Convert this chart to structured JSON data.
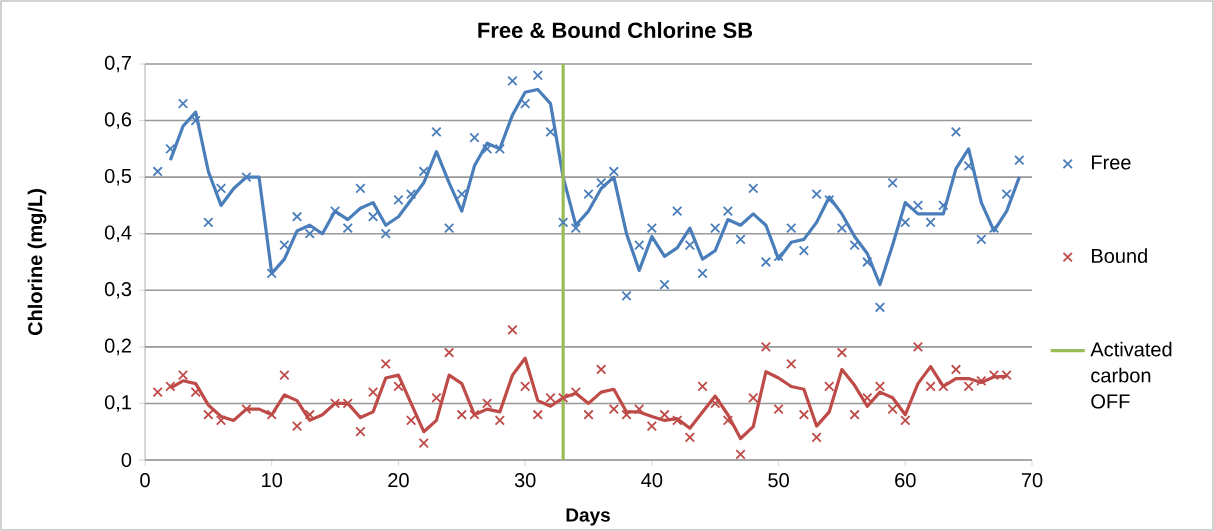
{
  "chart_data": {
    "type": "scatter",
    "title": "Free & Bound Chlorine SB",
    "xlabel": "Days",
    "ylabel": "Chlorine (mg/L)",
    "xlim": [
      0,
      70
    ],
    "ylim": [
      0,
      0.7
    ],
    "xticks": [
      0,
      10,
      20,
      30,
      40,
      50,
      60,
      70
    ],
    "yticks": [
      0,
      {
        "value": 0.1,
        "label": "0,1"
      },
      {
        "value": 0.2,
        "label": "0,2"
      },
      {
        "value": 0.3,
        "label": "0,3"
      },
      {
        "value": 0.4,
        "label": "0,4"
      },
      {
        "value": 0.5,
        "label": "0,5"
      },
      {
        "value": 0.6,
        "label": "0,6"
      },
      {
        "value": 0.7,
        "label": "0,7"
      }
    ],
    "grid": "y",
    "legend": "right",
    "series": [
      {
        "name": "Free",
        "type": "scatter",
        "marker": "cross",
        "color": "#4a7ebb",
        "x": [
          1,
          2,
          3,
          4,
          5,
          6,
          8,
          10,
          11,
          12,
          13,
          15,
          16,
          17,
          18,
          19,
          20,
          21,
          22,
          23,
          24,
          25,
          26,
          27,
          28,
          29,
          30,
          31,
          32,
          33,
          34,
          35,
          36,
          37,
          38,
          39,
          40,
          41,
          42,
          43,
          44,
          45,
          46,
          47,
          48,
          49,
          50,
          51,
          52,
          53,
          54,
          55,
          56,
          57,
          58,
          59,
          60,
          61,
          62,
          63,
          64,
          65,
          66,
          67,
          68,
          69
        ],
        "values": [
          0.51,
          0.55,
          0.63,
          0.6,
          0.42,
          0.48,
          0.5,
          0.33,
          0.38,
          0.43,
          0.4,
          0.44,
          0.41,
          0.48,
          0.43,
          0.4,
          0.46,
          0.47,
          0.51,
          0.58,
          0.41,
          0.47,
          0.57,
          0.55,
          0.55,
          0.67,
          0.63,
          0.68,
          0.58,
          0.42,
          0.41,
          0.47,
          0.49,
          0.51,
          0.29,
          0.38,
          0.41,
          0.31,
          0.44,
          0.38,
          0.33,
          0.41,
          0.44,
          0.39,
          0.48,
          0.35,
          0.36,
          0.41,
          0.37,
          0.47,
          0.46,
          0.41,
          0.38,
          0.35,
          0.27,
          0.49,
          0.42,
          0.45,
          0.42,
          0.45,
          0.58,
          0.52,
          0.39,
          0.41,
          0.47,
          0.53
        ]
      },
      {
        "name": "Bound",
        "type": "scatter",
        "marker": "cross",
        "color": "#be4b48",
        "x": [
          1,
          2,
          3,
          4,
          5,
          6,
          8,
          10,
          11,
          12,
          13,
          15,
          16,
          17,
          18,
          19,
          20,
          21,
          22,
          23,
          24,
          25,
          26,
          27,
          28,
          29,
          30,
          31,
          32,
          33,
          34,
          35,
          36,
          37,
          38,
          39,
          40,
          41,
          42,
          43,
          44,
          45,
          46,
          47,
          48,
          49,
          50,
          51,
          52,
          53,
          54,
          55,
          56,
          57,
          58,
          59,
          60,
          61,
          62,
          63,
          64,
          65,
          66,
          67,
          68
        ],
        "values": [
          0.12,
          0.13,
          0.15,
          0.12,
          0.08,
          0.07,
          0.09,
          0.08,
          0.15,
          0.06,
          0.08,
          0.1,
          0.1,
          0.05,
          0.12,
          0.17,
          0.13,
          0.07,
          0.03,
          0.11,
          0.19,
          0.08,
          0.08,
          0.1,
          0.07,
          0.23,
          0.13,
          0.08,
          0.11,
          0.11,
          0.12,
          0.08,
          0.16,
          0.09,
          0.08,
          0.09,
          0.06,
          0.08,
          0.07,
          0.04,
          0.13,
          0.1,
          0.07,
          0.01,
          0.11,
          0.2,
          0.09,
          0.17,
          0.08,
          0.04,
          0.13,
          0.19,
          0.08,
          0.11,
          0.13,
          0.09,
          0.07,
          0.2,
          0.13,
          0.13,
          0.16,
          0.13,
          0.14,
          0.15,
          0.15
        ]
      },
      {
        "type": "line",
        "marker": "none",
        "color": "#4a7ebb",
        "x": [
          2,
          3,
          4,
          5,
          6,
          7,
          8,
          9,
          10,
          11,
          12,
          13,
          14,
          15,
          16,
          17,
          18,
          19,
          20,
          21,
          22,
          23,
          24,
          25,
          26,
          27,
          28,
          29,
          30,
          31,
          32,
          33,
          34,
          35,
          36,
          37,
          38,
          39,
          40,
          41,
          42,
          43,
          44,
          45,
          46,
          47,
          48,
          49,
          50,
          51,
          52,
          53,
          54,
          55,
          56,
          57,
          58,
          59,
          60,
          61,
          62,
          63,
          64,
          65,
          66,
          67,
          68,
          69
        ],
        "values": [
          0.53,
          0.59,
          0.615,
          0.51,
          0.45,
          0.48,
          0.5,
          0.5,
          0.33,
          0.355,
          0.405,
          0.415,
          0.4,
          0.44,
          0.425,
          0.445,
          0.455,
          0.415,
          0.43,
          0.46,
          0.49,
          0.545,
          0.49,
          0.44,
          0.52,
          0.56,
          0.55,
          0.61,
          0.65,
          0.655,
          0.63,
          0.5,
          0.415,
          0.44,
          0.48,
          0.5,
          0.4,
          0.335,
          0.395,
          0.36,
          0.375,
          0.41,
          0.355,
          0.37,
          0.425,
          0.415,
          0.435,
          0.415,
          0.355,
          0.385,
          0.39,
          0.42,
          0.465,
          0.435,
          0.395,
          0.365,
          0.31,
          0.38,
          0.455,
          0.435,
          0.435,
          0.435,
          0.515,
          0.55,
          0.455,
          0.405,
          0.44,
          0.5
        ]
      },
      {
        "type": "line",
        "marker": "none",
        "color": "#be4b48",
        "x": [
          2,
          3,
          4,
          5,
          6,
          7,
          8,
          9,
          10,
          11,
          12,
          13,
          14,
          15,
          16,
          17,
          18,
          19,
          20,
          21,
          22,
          23,
          24,
          25,
          26,
          27,
          28,
          29,
          30,
          31,
          32,
          33,
          34,
          35,
          36,
          37,
          38,
          39,
          40,
          41,
          42,
          43,
          44,
          45,
          46,
          47,
          48,
          49,
          50,
          51,
          52,
          53,
          54,
          55,
          56,
          57,
          58,
          59,
          60,
          61,
          62,
          63,
          64,
          65,
          66,
          67,
          68
        ],
        "values": [
          0.127,
          0.14,
          0.135,
          0.097,
          0.077,
          0.07,
          0.09,
          0.09,
          0.08,
          0.115,
          0.105,
          0.07,
          0.08,
          0.1,
          0.1,
          0.075,
          0.085,
          0.145,
          0.15,
          0.1,
          0.05,
          0.07,
          0.15,
          0.135,
          0.08,
          0.09,
          0.085,
          0.15,
          0.18,
          0.105,
          0.095,
          0.11,
          0.118,
          0.1,
          0.12,
          0.125,
          0.085,
          0.085,
          0.077,
          0.07,
          0.073,
          0.056,
          0.085,
          0.113,
          0.08,
          0.038,
          0.059,
          0.156,
          0.145,
          0.13,
          0.125,
          0.06,
          0.085,
          0.16,
          0.132,
          0.095,
          0.12,
          0.11,
          0.08,
          0.135,
          0.165,
          0.13,
          0.144,
          0.144,
          0.137,
          0.147,
          0.148
        ]
      },
      {
        "name": "Activated carbon OFF",
        "type": "line",
        "marker": "none",
        "color": "#9bbb59",
        "x": [
          33,
          33
        ],
        "values": [
          0,
          0.7
        ]
      }
    ]
  }
}
